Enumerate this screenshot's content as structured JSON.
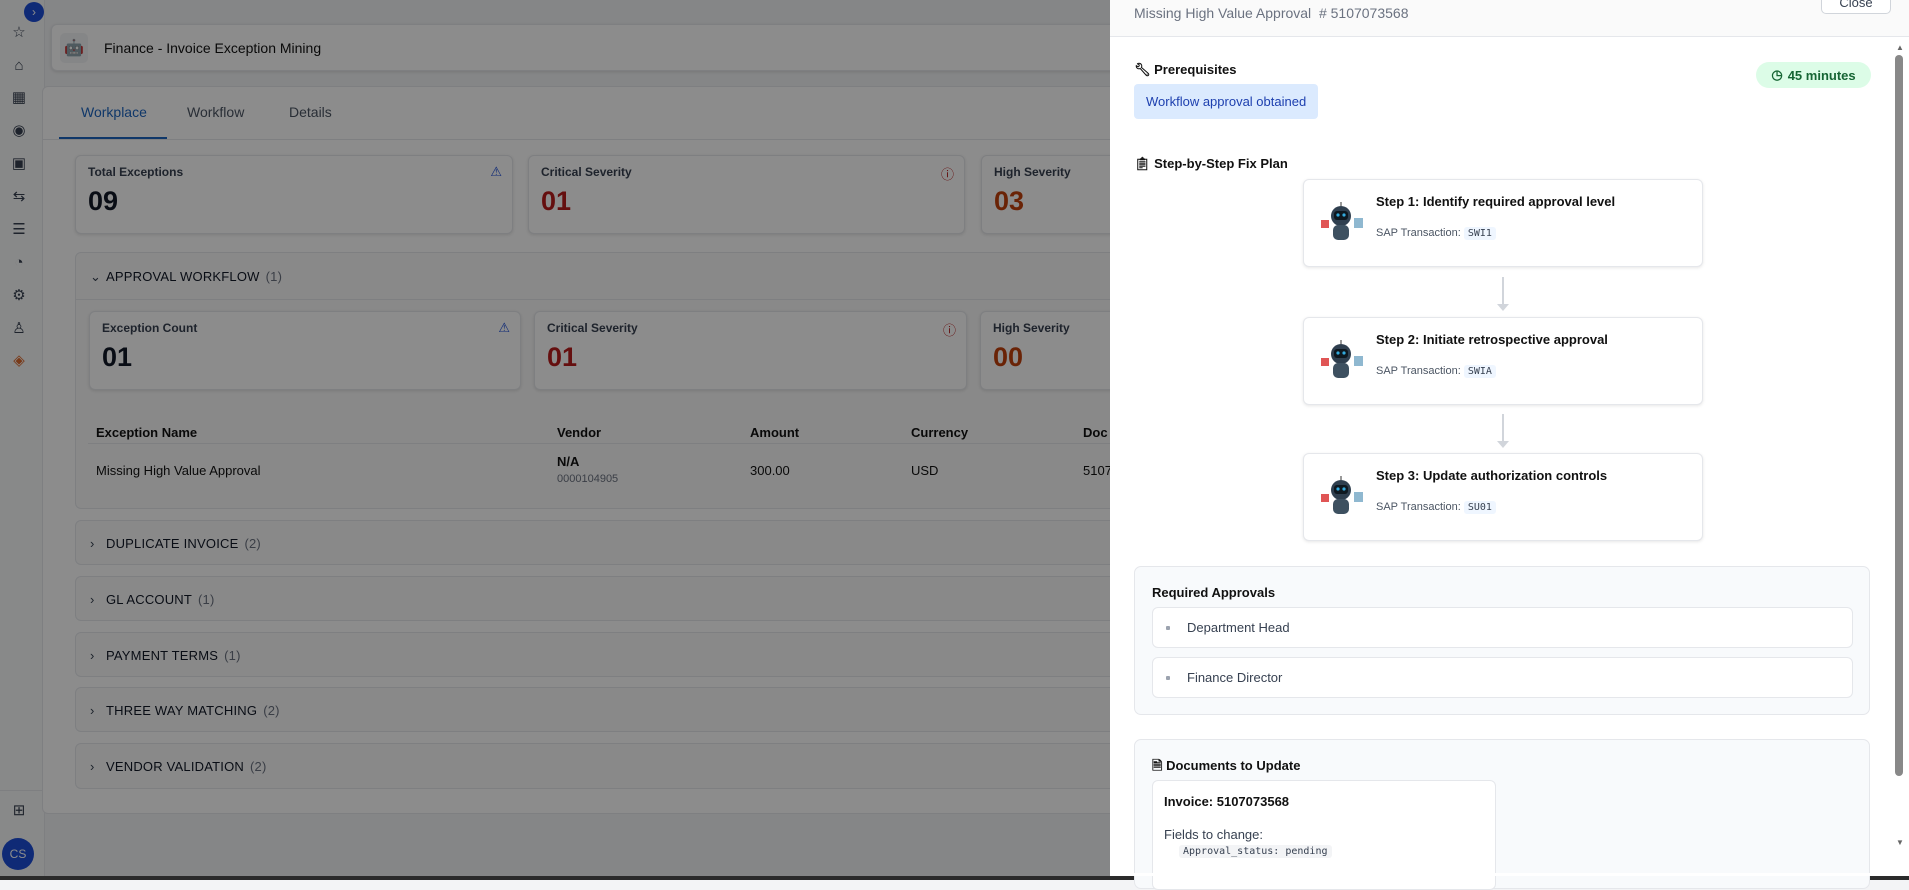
{
  "sidebar": {
    "items": [
      {
        "icon": "star-icon"
      },
      {
        "icon": "home-icon"
      },
      {
        "icon": "apps-grid-icon"
      },
      {
        "icon": "location-pin-icon"
      },
      {
        "icon": "kanban-icon"
      },
      {
        "icon": "transfer-arrows-icon"
      },
      {
        "icon": "list-icon"
      },
      {
        "icon": "gauge-icon"
      },
      {
        "icon": "gear-icon"
      },
      {
        "icon": "rocket-icon"
      },
      {
        "icon": "diamond-logo-icon"
      }
    ],
    "bottom_icon": "add-layout-icon",
    "avatar": "CS"
  },
  "header": {
    "title": "Finance - Invoice Exception Mining"
  },
  "tabs": [
    {
      "label": "Workplace",
      "active": true
    },
    {
      "label": "Workflow"
    },
    {
      "label": "Details"
    }
  ],
  "summary": [
    {
      "label": "Total Exceptions",
      "value": "09",
      "color": "#111827",
      "icon": "warning-triangle-icon"
    },
    {
      "label": "Critical Severity",
      "value": "01",
      "color": "#b91c1c",
      "icon": "alert-circle-icon"
    },
    {
      "label": "High Severity",
      "value": "03",
      "color": "#c2410c"
    }
  ],
  "approval_workflow": {
    "title": "APPROVAL WORKFLOW",
    "count": "(1)",
    "kpis": [
      {
        "label": "Exception Count",
        "value": "01",
        "color": "#111827"
      },
      {
        "label": "Critical Severity",
        "value": "01",
        "color": "#b91c1c"
      },
      {
        "label": "High Severity",
        "value": "00",
        "color": "#c2410c"
      }
    ],
    "columns": [
      "Exception Name",
      "Vendor",
      "Amount",
      "Currency",
      "Doc"
    ],
    "rows": [
      {
        "name": "Missing High Value Approval",
        "vendor": "N/A",
        "vendor_id": "0000104905",
        "amount": "300.00",
        "currency": "USD",
        "doc": "5107"
      }
    ]
  },
  "sections": [
    {
      "title": "DUPLICATE INVOICE",
      "count": "(2)"
    },
    {
      "title": "GL ACCOUNT",
      "count": "(1)"
    },
    {
      "title": "PAYMENT TERMS",
      "count": "(1)"
    },
    {
      "title": "THREE WAY MATCHING",
      "count": "(2)"
    },
    {
      "title": "VENDOR VALIDATION",
      "count": "(2)"
    }
  ],
  "drawer": {
    "title": "Missing High Value Approval",
    "doc_number": "# 5107073568",
    "close_label": "Close",
    "prerequisites_title": "Prerequisites",
    "prerequisite": "Workflow approval obtained",
    "duration": "45 minutes",
    "plan_title": "Step-by-Step Fix Plan",
    "sap_label": "SAP Transaction:",
    "steps": [
      {
        "title": "Step 1: Identify required approval level",
        "tcode": "SWI1"
      },
      {
        "title": "Step 2: Initiate retrospective approval",
        "tcode": "SWIA"
      },
      {
        "title": "Step 3: Update authorization controls",
        "tcode": "SU01"
      }
    ],
    "approvals_title": "Required Approvals",
    "approvals": [
      "Department Head",
      "Finance Director"
    ],
    "documents_title": "Documents to Update",
    "document": {
      "title": "Invoice: 5107073568",
      "fields_label": "Fields to change:",
      "field": "Approval_status: pending"
    }
  },
  "colors": {
    "accent": "#1d64c0",
    "critical": "#b91c1c",
    "high": "#c2410c",
    "success_bg": "#dcfce7"
  }
}
